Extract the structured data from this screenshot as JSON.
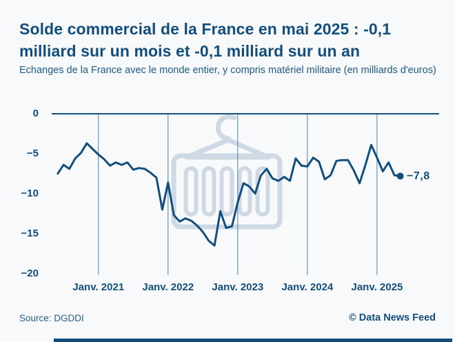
{
  "header": {
    "title_lines": [
      "Solde commercial de la France en mai 2025 : -0,1",
      "milliard sur un mois et -0,1 milliard sur un an"
    ],
    "subtitle": "Echanges de la France avec le monde entier, y compris matériel militaire (en milliards d'euros)"
  },
  "chart": {
    "y_tick_labels": [
      "0",
      "−5",
      "−10",
      "−15",
      "−20"
    ],
    "x_tick_labels": [
      "Janv. 2021",
      "Janv. 2022",
      "Janv. 2023",
      "Janv. 2024",
      "Janv. 2025"
    ],
    "end_label": "−7,8"
  },
  "chart_data": {
    "type": "line",
    "title": "Solde commercial de la France en mai 2025 : -0,1 milliard sur un mois et -0,1 milliard sur un an",
    "subtitle": "Echanges de la France avec le monde entier, y compris matériel militaire (en milliards d'euros)",
    "unit": "milliards d'euros",
    "ylim": [
      -20,
      0
    ],
    "y_ticks": [
      0,
      -5,
      -10,
      -15,
      -20
    ],
    "x_tick_month_indices": [
      7,
      19,
      31,
      43,
      55
    ],
    "grid": "vertical-only",
    "legend": "none",
    "last_point_label": "−7,8",
    "x": [
      "2020-06",
      "2020-07",
      "2020-08",
      "2020-09",
      "2020-10",
      "2020-11",
      "2020-12",
      "2021-01",
      "2021-02",
      "2021-03",
      "2021-04",
      "2021-05",
      "2021-06",
      "2021-07",
      "2021-08",
      "2021-09",
      "2021-10",
      "2021-11",
      "2021-12",
      "2022-01",
      "2022-02",
      "2022-03",
      "2022-04",
      "2022-05",
      "2022-06",
      "2022-07",
      "2022-08",
      "2022-09",
      "2022-10",
      "2022-11",
      "2022-12",
      "2023-01",
      "2023-02",
      "2023-03",
      "2023-04",
      "2023-05",
      "2023-06",
      "2023-07",
      "2023-08",
      "2023-09",
      "2023-10",
      "2023-11",
      "2023-12",
      "2024-01",
      "2024-02",
      "2024-03",
      "2024-04",
      "2024-05",
      "2024-06",
      "2024-07",
      "2024-08",
      "2024-09",
      "2024-10",
      "2024-11",
      "2024-12",
      "2025-01",
      "2025-02",
      "2025-03",
      "2025-04",
      "2025-05"
    ],
    "values": [
      -7.5,
      -6.4,
      -6.9,
      -5.6,
      -4.9,
      -3.7,
      -4.4,
      -5.1,
      -5.7,
      -6.5,
      -6.1,
      -6.4,
      -6.1,
      -7.0,
      -6.8,
      -6.9,
      -7.4,
      -8.0,
      -12.0,
      -8.6,
      -12.7,
      -13.5,
      -13.1,
      -13.4,
      -14.0,
      -14.8,
      -15.9,
      -16.5,
      -12.2,
      -14.3,
      -14.1,
      -11.1,
      -8.7,
      -9.1,
      -10.0,
      -7.7,
      -6.9,
      -8.1,
      -8.4,
      -7.9,
      -8.4,
      -5.6,
      -6.5,
      -6.6,
      -5.5,
      -6.0,
      -8.2,
      -7.7,
      -5.9,
      -5.8,
      -5.8,
      -7.1,
      -8.7,
      -6.4,
      -3.9,
      -5.5,
      -7.2,
      -6.1,
      -7.7,
      -7.8
    ]
  },
  "footer": {
    "source": "Source: DGDDI",
    "credit": "© Data News Feed"
  },
  "colors": {
    "navy": "#124e7d",
    "grid": "#4d7da5",
    "watermark": "#cfd9e3",
    "background": "#f8f9fa",
    "bottom_bar": "#124e7d"
  }
}
